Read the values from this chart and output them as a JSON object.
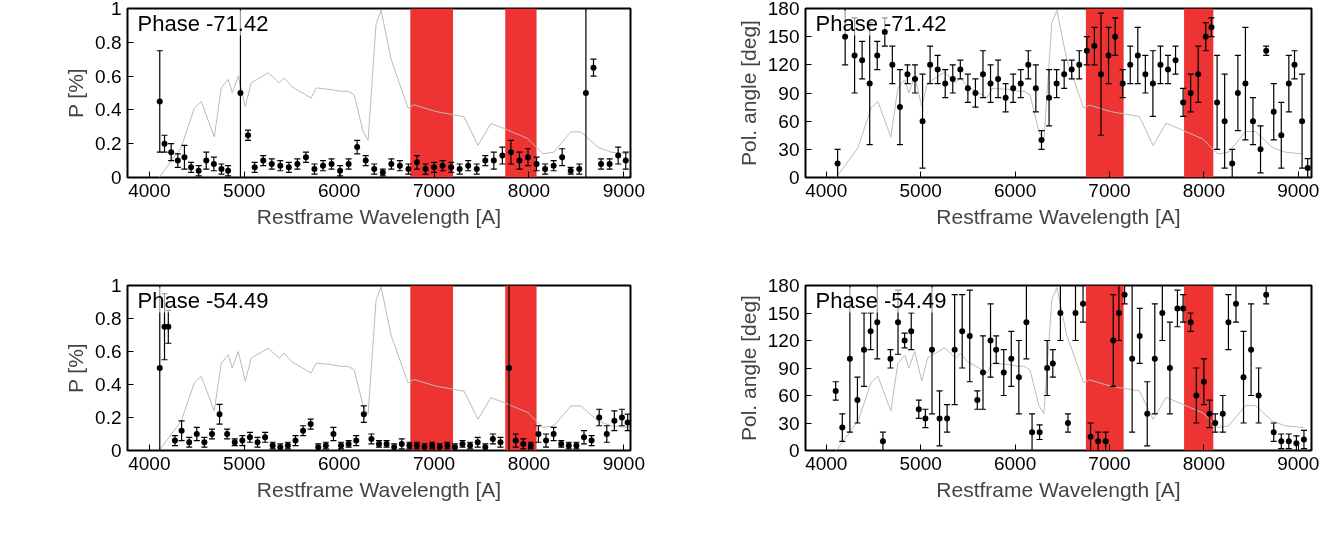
{
  "chart_data": [
    {
      "type": "scatter",
      "xlabel": "Restframe Wavelength [A]",
      "ylabel": "P [%]",
      "annotations": [
        "Phase -71.42"
      ],
      "xlim": [
        3770,
        9070
      ],
      "xticks": [
        4000,
        5000,
        6000,
        7000,
        8000,
        9000
      ],
      "ylim": [
        0,
        1
      ],
      "yticks": [
        0,
        {
          "value": 0.2,
          "label": "0.2"
        },
        {
          "value": 0.4,
          "label": "0.4"
        },
        {
          "value": 0.6,
          "label": "0.6"
        },
        {
          "value": 0.8,
          "label": "0.8"
        },
        1
      ],
      "bands": [
        {
          "axis": "x",
          "from": 6750,
          "to": 7200,
          "color": "#ee3333"
        },
        {
          "axis": "x",
          "from": 7750,
          "to": 8080,
          "color": "#ee3333"
        }
      ],
      "series": [
        {
          "type": "line",
          "color": "#bbbbbb",
          "x": [
            4105,
            4337,
            4474,
            4547,
            4684,
            4758,
            4832,
            4874,
            4937,
            5011,
            5074,
            5253,
            5368,
            5421,
            5495,
            5705,
            5758,
            5916,
            6021,
            6095,
            6158,
            6253,
            6305,
            6389,
            6442,
            6547,
            6726,
            6789,
            7021,
            7316,
            7463,
            7600,
            7737,
            7989,
            8147,
            8263,
            8442,
            8547,
            8726,
            8863,
            9053
          ],
          "values": [
            0,
            0.18,
            0.41,
            0.45,
            0.24,
            0.53,
            0.58,
            0.5,
            0.6,
            0.42,
            0.56,
            0.62,
            0.56,
            0.59,
            0.54,
            0.47,
            0.53,
            0.52,
            0.51,
            0.51,
            0.49,
            0.27,
            0.22,
            0.91,
            0.99,
            0.7,
            0.41,
            0.43,
            0.39,
            0.36,
            0.19,
            0.32,
            0.29,
            0.23,
            0.14,
            0.15,
            0.27,
            0.27,
            0.18,
            0.15,
            0.14
          ]
        },
        {
          "marker": "circle",
          "color": "#000000",
          "x": [
            4110,
            4160,
            4230,
            4300,
            4370,
            4440,
            4520,
            4600,
            4680,
            4760,
            4830,
            4960,
            5040,
            5110,
            5200,
            5290,
            5380,
            5470,
            5560,
            5650,
            5740,
            5830,
            5920,
            6010,
            6100,
            6190,
            6280,
            6370,
            6460,
            6550,
            6640,
            6730,
            6820,
            6910,
            7000,
            7090,
            7180,
            7270,
            7360,
            7450,
            7540,
            7630,
            7720,
            7810,
            7900,
            7990,
            8080,
            8170,
            8260,
            8350,
            8440,
            8530,
            8600,
            8680,
            8760,
            8850,
            8940,
            9020
          ],
          "values": [
            0.45,
            0.2,
            0.15,
            0.1,
            0.12,
            0.06,
            0.04,
            0.1,
            0.08,
            0.05,
            0.04,
            0.5,
            0.25,
            0.06,
            0.1,
            0.08,
            0.07,
            0.06,
            0.08,
            0.12,
            0.05,
            0.07,
            0.08,
            0.04,
            0.08,
            0.18,
            0.1,
            0.05,
            0.03,
            0.08,
            0.07,
            0.05,
            0.09,
            0.05,
            0.06,
            0.07,
            0.06,
            0.05,
            0.07,
            0.05,
            0.1,
            0.1,
            0.13,
            0.15,
            0.1,
            0.12,
            0.08,
            0.05,
            0.07,
            0.12,
            0.04,
            0.05,
            0.5,
            0.65,
            0.08,
            0.08,
            0.13,
            0.1
          ],
          "errors": [
            0.3,
            0.05,
            0.05,
            0.04,
            0.07,
            0.03,
            0.03,
            0.05,
            0.04,
            0.03,
            0.03,
            0.5,
            0.03,
            0.03,
            0.03,
            0.03,
            0.03,
            0.03,
            0.03,
            0.03,
            0.03,
            0.03,
            0.03,
            0.03,
            0.03,
            0.04,
            0.03,
            0.03,
            0.02,
            0.03,
            0.03,
            0.03,
            0.04,
            0.03,
            0.03,
            0.03,
            0.03,
            0.03,
            0.03,
            0.03,
            0.03,
            0.05,
            0.05,
            0.07,
            0.05,
            0.05,
            0.04,
            0.03,
            0.03,
            0.05,
            0.02,
            0.03,
            0.5,
            0.05,
            0.03,
            0.03,
            0.05,
            0.05
          ]
        }
      ]
    },
    {
      "type": "scatter",
      "xlabel": "Restframe Wavelength [A]",
      "ylabel": "Pol. angle [deg]",
      "annotations": [
        "Phase -71.42"
      ],
      "xlim": [
        3780,
        9140
      ],
      "xticks": [
        4000,
        5000,
        6000,
        7000,
        8000,
        9000
      ],
      "ylim": [
        0,
        180
      ],
      "yticks": [
        0,
        30,
        60,
        90,
        120,
        150,
        180
      ],
      "bands": [
        {
          "axis": "x",
          "from": 6750,
          "to": 7150,
          "color": "#ee3333"
        },
        {
          "axis": "x",
          "from": 7790,
          "to": 8100,
          "color": "#ee3333"
        }
      ],
      "series": [
        {
          "type": "line",
          "color": "#bbbbbb",
          "x": [
            4105,
            4337,
            4474,
            4547,
            4684,
            4758,
            4832,
            4874,
            4937,
            5011,
            5074,
            5253,
            5368,
            5421,
            5495,
            5705,
            5758,
            5916,
            6021,
            6095,
            6158,
            6253,
            6305,
            6389,
            6442,
            6547,
            6726,
            6789,
            7021,
            7316,
            7463,
            7600,
            7737,
            7989,
            8147,
            8263,
            8442,
            8547,
            8726,
            8863,
            9053
          ],
          "values": [
            0,
            32,
            74,
            81,
            43,
            95,
            104,
            90,
            108,
            76,
            101,
            112,
            101,
            106,
            97,
            85,
            95,
            94,
            92,
            92,
            88,
            49,
            40,
            164,
            178,
            126,
            74,
            77,
            70,
            65,
            34,
            58,
            52,
            41,
            25,
            27,
            49,
            49,
            32,
            27,
            25
          ]
        },
        {
          "marker": "circle",
          "color": "#000000",
          "x": [
            4120,
            4200,
            4300,
            4380,
            4460,
            4540,
            4620,
            4700,
            4780,
            4860,
            4940,
            5020,
            5100,
            5180,
            5260,
            5340,
            5420,
            5500,
            5580,
            5660,
            5740,
            5820,
            5900,
            5980,
            6060,
            6140,
            6220,
            6280,
            6360,
            6440,
            6520,
            6600,
            6680,
            6760,
            6840,
            6910,
            6990,
            7060,
            7140,
            7220,
            7300,
            7380,
            7460,
            7540,
            7620,
            7700,
            7780,
            7860,
            7940,
            8020,
            8080,
            8140,
            8220,
            8300,
            8360,
            8440,
            8520,
            8600,
            8660,
            8740,
            8820,
            8900,
            8960,
            9040,
            9100
          ],
          "values": [
            15,
            150,
            130,
            125,
            100,
            130,
            155,
            120,
            75,
            110,
            105,
            60,
            120,
            115,
            100,
            105,
            115,
            95,
            90,
            110,
            100,
            105,
            85,
            95,
            100,
            120,
            95,
            40,
            85,
            100,
            110,
            115,
            120,
            135,
            140,
            110,
            130,
            150,
            100,
            120,
            130,
            110,
            100,
            120,
            115,
            125,
            80,
            90,
            110,
            150,
            160,
            80,
            60,
            15,
            90,
            100,
            60,
            30,
            135,
            70,
            45,
            100,
            120,
            60,
            10
          ],
          "errors": [
            15,
            30,
            40,
            20,
            65,
            15,
            15,
            20,
            40,
            10,
            15,
            50,
            20,
            15,
            15,
            15,
            10,
            15,
            15,
            25,
            20,
            20,
            15,
            15,
            15,
            15,
            25,
            10,
            30,
            15,
            15,
            10,
            15,
            15,
            20,
            65,
            30,
            20,
            15,
            20,
            30,
            20,
            35,
            20,
            15,
            15,
            15,
            20,
            30,
            15,
            10,
            50,
            50,
            15,
            40,
            60,
            25,
            25,
            5,
            30,
            35,
            30,
            15,
            50,
            10
          ]
        }
      ]
    },
    {
      "type": "scatter",
      "xlabel": "Restframe Wavelength [A]",
      "ylabel": "P [%]",
      "annotations": [
        "Phase -54.49"
      ],
      "xlim": [
        3770,
        9070
      ],
      "xticks": [
        4000,
        5000,
        6000,
        7000,
        8000,
        9000
      ],
      "ylim": [
        0,
        1
      ],
      "yticks": [
        0,
        {
          "value": 0.2,
          "label": "0.2"
        },
        {
          "value": 0.4,
          "label": "0.4"
        },
        {
          "value": 0.6,
          "label": "0.6"
        },
        {
          "value": 0.8,
          "label": "0.8"
        },
        1
      ],
      "bands": [
        {
          "axis": "x",
          "from": 6750,
          "to": 7200,
          "color": "#ee3333"
        },
        {
          "axis": "x",
          "from": 7750,
          "to": 8080,
          "color": "#ee3333"
        }
      ],
      "series": [
        {
          "type": "line",
          "color": "#bbbbbb",
          "x": [
            4105,
            4337,
            4474,
            4547,
            4684,
            4758,
            4832,
            4874,
            4937,
            5011,
            5074,
            5253,
            5368,
            5421,
            5495,
            5705,
            5758,
            5916,
            6021,
            6095,
            6158,
            6253,
            6305,
            6389,
            6442,
            6547,
            6726,
            6789,
            7021,
            7316,
            7463,
            7600,
            7737,
            7989,
            8147,
            8263,
            8442,
            8547,
            8726,
            8863,
            9053
          ],
          "values": [
            0,
            0.18,
            0.41,
            0.45,
            0.24,
            0.53,
            0.58,
            0.5,
            0.6,
            0.42,
            0.56,
            0.62,
            0.56,
            0.59,
            0.54,
            0.47,
            0.53,
            0.52,
            0.51,
            0.51,
            0.49,
            0.27,
            0.22,
            0.91,
            0.99,
            0.7,
            0.41,
            0.43,
            0.39,
            0.36,
            0.19,
            0.32,
            0.29,
            0.23,
            0.14,
            0.15,
            0.27,
            0.27,
            0.18,
            0.15,
            0.14
          ]
        },
        {
          "marker": "circle",
          "color": "#000000",
          "x": [
            4110,
            4160,
            4200,
            4270,
            4340,
            4420,
            4500,
            4580,
            4660,
            4740,
            4820,
            4900,
            4980,
            5060,
            5140,
            5220,
            5300,
            5380,
            5460,
            5540,
            5620,
            5700,
            5780,
            5860,
            5940,
            6020,
            6100,
            6180,
            6260,
            6340,
            6420,
            6500,
            6580,
            6660,
            6740,
            6820,
            6900,
            6980,
            7060,
            7140,
            7220,
            7300,
            7380,
            7460,
            7540,
            7620,
            7700,
            7790,
            7860,
            7940,
            8020,
            8100,
            8180,
            8260,
            8340,
            8420,
            8500,
            8580,
            8660,
            8740,
            8820,
            8900,
            8980,
            9040
          ],
          "values": [
            0.5,
            0.75,
            0.75,
            0.06,
            0.12,
            0.05,
            0.1,
            0.05,
            0.1,
            0.22,
            0.1,
            0.05,
            0.06,
            0.08,
            0.05,
            0.08,
            0.03,
            0.02,
            0.03,
            0.06,
            0.12,
            0.16,
            0.02,
            0.03,
            0.1,
            0.03,
            0.04,
            0.06,
            0.22,
            0.07,
            0.04,
            0.04,
            0.02,
            0.04,
            0.03,
            0.03,
            0.02,
            0.03,
            0.02,
            0.03,
            0.02,
            0.04,
            0.03,
            0.05,
            0.02,
            0.07,
            0.05,
            0.5,
            0.06,
            0.04,
            0.03,
            0.1,
            0.06,
            0.1,
            0.04,
            0.03,
            0.03,
            0.08,
            0.06,
            0.2,
            0.1,
            0.18,
            0.2,
            0.17
          ],
          "errors": [
            0.5,
            0.2,
            0.1,
            0.03,
            0.06,
            0.03,
            0.04,
            0.03,
            0.03,
            0.06,
            0.03,
            0.02,
            0.03,
            0.03,
            0.03,
            0.03,
            0.02,
            0.02,
            0.02,
            0.03,
            0.03,
            0.03,
            0.02,
            0.02,
            0.04,
            0.02,
            0.02,
            0.03,
            0.05,
            0.03,
            0.02,
            0.02,
            0.02,
            0.03,
            0.02,
            0.02,
            0.02,
            0.02,
            0.02,
            0.02,
            0.02,
            0.02,
            0.02,
            0.03,
            0.02,
            0.03,
            0.03,
            0.5,
            0.04,
            0.03,
            0.02,
            0.05,
            0.04,
            0.04,
            0.02,
            0.02,
            0.02,
            0.04,
            0.03,
            0.05,
            0.05,
            0.06,
            0.05,
            0.05
          ]
        }
      ]
    },
    {
      "type": "scatter",
      "xlabel": "Restframe Wavelength [A]",
      "ylabel": "Pol. angle [deg]",
      "annotations": [
        "Phase -54.49"
      ],
      "xlim": [
        3780,
        9140
      ],
      "xticks": [
        4000,
        5000,
        6000,
        7000,
        8000,
        9000
      ],
      "ylim": [
        0,
        180
      ],
      "yticks": [
        0,
        30,
        60,
        90,
        120,
        150,
        180
      ],
      "bands": [
        {
          "axis": "x",
          "from": 6750,
          "to": 7150,
          "color": "#ee3333"
        },
        {
          "axis": "x",
          "from": 7790,
          "to": 8100,
          "color": "#ee3333"
        }
      ],
      "series": [
        {
          "type": "line",
          "color": "#bbbbbb",
          "x": [
            4105,
            4337,
            4474,
            4547,
            4684,
            4758,
            4832,
            4874,
            4937,
            5011,
            5074,
            5253,
            5368,
            5421,
            5495,
            5705,
            5758,
            5916,
            6021,
            6095,
            6158,
            6253,
            6305,
            6389,
            6442,
            6547,
            6726,
            6789,
            7021,
            7316,
            7463,
            7600,
            7737,
            7989,
            8147,
            8263,
            8442,
            8547,
            8726,
            8863,
            9053
          ],
          "values": [
            0,
            32,
            74,
            81,
            43,
            95,
            104,
            90,
            108,
            76,
            101,
            112,
            101,
            106,
            97,
            85,
            95,
            94,
            92,
            92,
            88,
            49,
            40,
            164,
            178,
            126,
            74,
            77,
            70,
            65,
            34,
            58,
            52,
            41,
            25,
            27,
            49,
            49,
            32,
            27,
            25
          ]
        },
        {
          "marker": "circle",
          "color": "#000000",
          "x": [
            4100,
            4170,
            4250,
            4330,
            4400,
            4470,
            4540,
            4600,
            4680,
            4760,
            4830,
            4900,
            4980,
            5050,
            5120,
            5200,
            5280,
            5360,
            5440,
            5520,
            5600,
            5660,
            5740,
            5800,
            5880,
            5960,
            6040,
            6120,
            6180,
            6260,
            6340,
            6400,
            6480,
            6560,
            6640,
            6720,
            6800,
            6880,
            6960,
            7040,
            7100,
            7160,
            7240,
            7320,
            7400,
            7480,
            7560,
            7640,
            7720,
            7780,
            7860,
            7920,
            8000,
            8060,
            8120,
            8200,
            8260,
            8340,
            8420,
            8500,
            8580,
            8660,
            8740,
            8820,
            8900,
            8980,
            9060
          ],
          "values": [
            65,
            25,
            100,
            55,
            110,
            130,
            140,
            10,
            100,
            140,
            120,
            130,
            45,
            35,
            110,
            35,
            35,
            110,
            130,
            125,
            55,
            85,
            120,
            110,
            85,
            100,
            80,
            140,
            20,
            20,
            90,
            95,
            150,
            30,
            150,
            160,
            15,
            10,
            10,
            120,
            150,
            170,
            100,
            125,
            40,
            100,
            150,
            90,
            155,
            155,
            140,
            60,
            75,
            40,
            30,
            40,
            140,
            160,
            80,
            110,
            60,
            170,
            20,
            10,
            10,
            8,
            12
          ],
          "errors": [
            10,
            15,
            80,
            25,
            40,
            20,
            40,
            10,
            10,
            35,
            8,
            20,
            10,
            10,
            70,
            30,
            15,
            60,
            40,
            50,
            10,
            40,
            40,
            15,
            25,
            30,
            40,
            40,
            20,
            8,
            30,
            15,
            30,
            10,
            30,
            20,
            15,
            10,
            10,
            50,
            30,
            10,
            80,
            30,
            35,
            60,
            30,
            50,
            20,
            15,
            10,
            30,
            25,
            15,
            10,
            20,
            30,
            20,
            50,
            50,
            30,
            10,
            10,
            8,
            8,
            8,
            10
          ]
        }
      ]
    }
  ]
}
